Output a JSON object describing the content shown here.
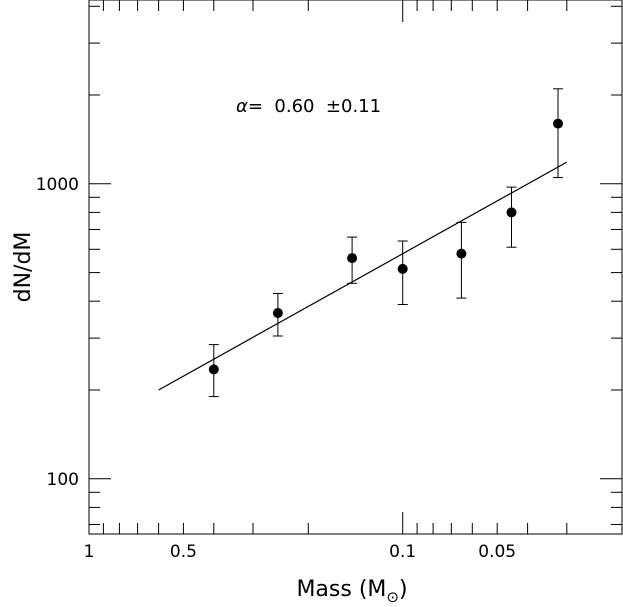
{
  "chart_data": {
    "type": "scatter",
    "title": "",
    "xlabel": "Mass (M",
    "xlabel_symbol": "⊙",
    "xlabel_close": ")",
    "ylabel": "dN/dM",
    "x_scale": "log",
    "x_reversed": true,
    "x_lim": [
      1.0,
      0.02
    ],
    "y_scale": "log",
    "y_lim": [
      65,
      4200
    ],
    "x_tick_labels": [
      {
        "value": 1.0,
        "label": "1"
      },
      {
        "value": 0.5,
        "label": "0.5"
      },
      {
        "value": 0.1,
        "label": "0.1"
      },
      {
        "value": 0.05,
        "label": "0.05"
      }
    ],
    "y_tick_labels": [
      {
        "value": 100,
        "label": "100"
      },
      {
        "value": 1000,
        "label": "1000"
      }
    ],
    "annotation": {
      "symbol": "α",
      "text": "=  0.60  ±0.11"
    },
    "points": [
      {
        "x": 0.4,
        "y": 235,
        "y_low": 190,
        "y_high": 285
      },
      {
        "x": 0.25,
        "y": 365,
        "y_low": 305,
        "y_high": 425
      },
      {
        "x": 0.145,
        "y": 560,
        "y_low": 460,
        "y_high": 660
      },
      {
        "x": 0.1,
        "y": 515,
        "y_low": 390,
        "y_high": 640
      },
      {
        "x": 0.065,
        "y": 580,
        "y_low": 410,
        "y_high": 740
      },
      {
        "x": 0.045,
        "y": 800,
        "y_low": 610,
        "y_high": 975
      },
      {
        "x": 0.032,
        "y": 1600,
        "y_low": 1050,
        "y_high": 2100
      }
    ],
    "fit_line": {
      "x": [
        0.6,
        0.03
      ],
      "y": [
        200,
        1185
      ]
    }
  }
}
